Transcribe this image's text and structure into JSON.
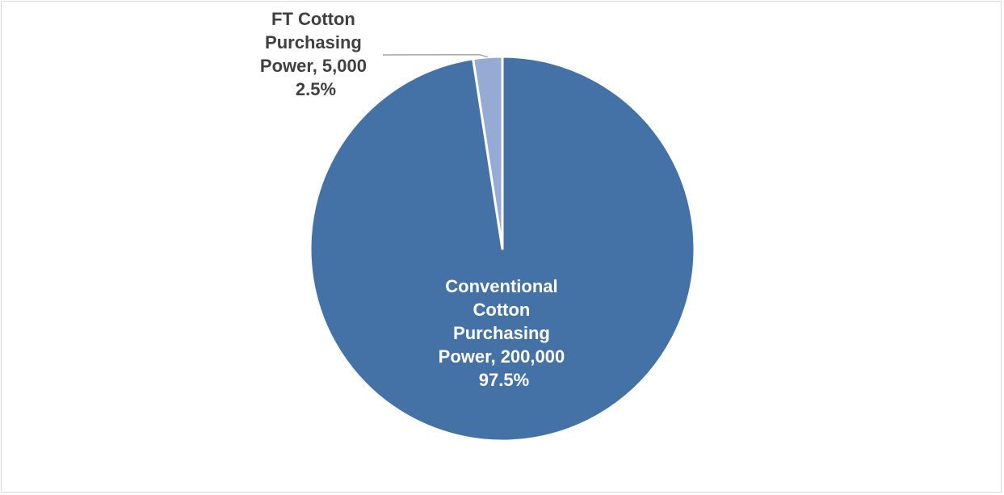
{
  "chart_data": {
    "type": "pie",
    "title": "",
    "categories": [
      "Conventional Cotton Purchasing Power",
      "FT Cotton Purchasing Power"
    ],
    "values": [
      200000,
      5000
    ],
    "percentages": [
      97.5,
      2.5
    ],
    "colors": [
      "#4472a6",
      "#95abd4"
    ],
    "start_angle_deg": 0,
    "direction": "clockwise",
    "legend": "none",
    "data_labels": [
      {
        "lines": [
          "Conventional",
          "Cotton",
          "Purchasing",
          "Power, 200,000",
          "97.5%"
        ],
        "color": "#ffffff",
        "position": "inside"
      },
      {
        "lines": [
          "FT Cotton",
          "Purchasing",
          "Power,  5,000",
          "2.5%"
        ],
        "color": "#404040",
        "position": "outside-with-leader"
      }
    ]
  }
}
